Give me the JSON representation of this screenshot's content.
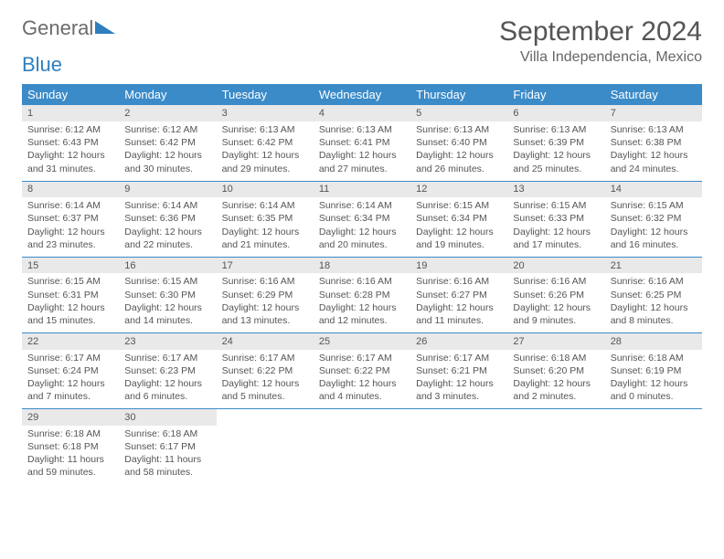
{
  "logo": {
    "part1": "General",
    "part2": "Blue"
  },
  "header": {
    "month": "September 2024",
    "location": "Villa Independencia, Mexico"
  },
  "colors": {
    "accent": "#3b8bc8",
    "logo_blue": "#2e7fbf",
    "dayrow_bg": "#e9e9e9",
    "text": "#555555",
    "page_bg": "#ffffff"
  },
  "calendar": {
    "weekday_labels": [
      "Sunday",
      "Monday",
      "Tuesday",
      "Wednesday",
      "Thursday",
      "Friday",
      "Saturday"
    ],
    "first_weekday": 0,
    "days_in_month": 30,
    "days": [
      {
        "n": 1,
        "sunrise": "6:12 AM",
        "sunset": "6:43 PM",
        "daylight": "12 hours and 31 minutes."
      },
      {
        "n": 2,
        "sunrise": "6:12 AM",
        "sunset": "6:42 PM",
        "daylight": "12 hours and 30 minutes."
      },
      {
        "n": 3,
        "sunrise": "6:13 AM",
        "sunset": "6:42 PM",
        "daylight": "12 hours and 29 minutes."
      },
      {
        "n": 4,
        "sunrise": "6:13 AM",
        "sunset": "6:41 PM",
        "daylight": "12 hours and 27 minutes."
      },
      {
        "n": 5,
        "sunrise": "6:13 AM",
        "sunset": "6:40 PM",
        "daylight": "12 hours and 26 minutes."
      },
      {
        "n": 6,
        "sunrise": "6:13 AM",
        "sunset": "6:39 PM",
        "daylight": "12 hours and 25 minutes."
      },
      {
        "n": 7,
        "sunrise": "6:13 AM",
        "sunset": "6:38 PM",
        "daylight": "12 hours and 24 minutes."
      },
      {
        "n": 8,
        "sunrise": "6:14 AM",
        "sunset": "6:37 PM",
        "daylight": "12 hours and 23 minutes."
      },
      {
        "n": 9,
        "sunrise": "6:14 AM",
        "sunset": "6:36 PM",
        "daylight": "12 hours and 22 minutes."
      },
      {
        "n": 10,
        "sunrise": "6:14 AM",
        "sunset": "6:35 PM",
        "daylight": "12 hours and 21 minutes."
      },
      {
        "n": 11,
        "sunrise": "6:14 AM",
        "sunset": "6:34 PM",
        "daylight": "12 hours and 20 minutes."
      },
      {
        "n": 12,
        "sunrise": "6:15 AM",
        "sunset": "6:34 PM",
        "daylight": "12 hours and 19 minutes."
      },
      {
        "n": 13,
        "sunrise": "6:15 AM",
        "sunset": "6:33 PM",
        "daylight": "12 hours and 17 minutes."
      },
      {
        "n": 14,
        "sunrise": "6:15 AM",
        "sunset": "6:32 PM",
        "daylight": "12 hours and 16 minutes."
      },
      {
        "n": 15,
        "sunrise": "6:15 AM",
        "sunset": "6:31 PM",
        "daylight": "12 hours and 15 minutes."
      },
      {
        "n": 16,
        "sunrise": "6:15 AM",
        "sunset": "6:30 PM",
        "daylight": "12 hours and 14 minutes."
      },
      {
        "n": 17,
        "sunrise": "6:16 AM",
        "sunset": "6:29 PM",
        "daylight": "12 hours and 13 minutes."
      },
      {
        "n": 18,
        "sunrise": "6:16 AM",
        "sunset": "6:28 PM",
        "daylight": "12 hours and 12 minutes."
      },
      {
        "n": 19,
        "sunrise": "6:16 AM",
        "sunset": "6:27 PM",
        "daylight": "12 hours and 11 minutes."
      },
      {
        "n": 20,
        "sunrise": "6:16 AM",
        "sunset": "6:26 PM",
        "daylight": "12 hours and 9 minutes."
      },
      {
        "n": 21,
        "sunrise": "6:16 AM",
        "sunset": "6:25 PM",
        "daylight": "12 hours and 8 minutes."
      },
      {
        "n": 22,
        "sunrise": "6:17 AM",
        "sunset": "6:24 PM",
        "daylight": "12 hours and 7 minutes."
      },
      {
        "n": 23,
        "sunrise": "6:17 AM",
        "sunset": "6:23 PM",
        "daylight": "12 hours and 6 minutes."
      },
      {
        "n": 24,
        "sunrise": "6:17 AM",
        "sunset": "6:22 PM",
        "daylight": "12 hours and 5 minutes."
      },
      {
        "n": 25,
        "sunrise": "6:17 AM",
        "sunset": "6:22 PM",
        "daylight": "12 hours and 4 minutes."
      },
      {
        "n": 26,
        "sunrise": "6:17 AM",
        "sunset": "6:21 PM",
        "daylight": "12 hours and 3 minutes."
      },
      {
        "n": 27,
        "sunrise": "6:18 AM",
        "sunset": "6:20 PM",
        "daylight": "12 hours and 2 minutes."
      },
      {
        "n": 28,
        "sunrise": "6:18 AM",
        "sunset": "6:19 PM",
        "daylight": "12 hours and 0 minutes."
      },
      {
        "n": 29,
        "sunrise": "6:18 AM",
        "sunset": "6:18 PM",
        "daylight": "11 hours and 59 minutes."
      },
      {
        "n": 30,
        "sunrise": "6:18 AM",
        "sunset": "6:17 PM",
        "daylight": "11 hours and 58 minutes."
      }
    ],
    "labels": {
      "sunrise": "Sunrise:",
      "sunset": "Sunset:",
      "daylight": "Daylight:"
    }
  }
}
